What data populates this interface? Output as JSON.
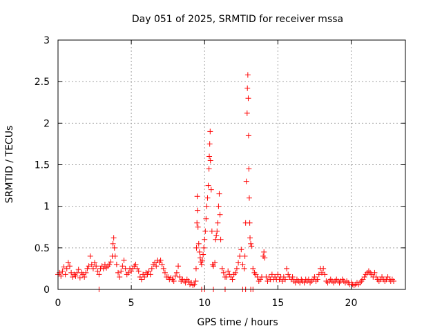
{
  "chart_data": {
    "type": "scatter",
    "title": "Day 051 of 2025, SRMTID for receiver mssa",
    "xlabel": "GPS time / hours",
    "ylabel": "SRMTID / TECUs",
    "xlim": [
      0,
      23.7
    ],
    "ylim": [
      0,
      3
    ],
    "x_ticks": [
      0,
      5,
      10,
      15,
      20
    ],
    "x_tick_labels": [
      "0",
      "5",
      "10",
      "15",
      "20"
    ],
    "y_ticks": [
      0,
      0.5,
      1,
      1.5,
      2,
      2.5,
      3
    ],
    "y_tick_labels": [
      "0",
      "0.5",
      "1",
      "1.5",
      "2",
      "2.5",
      "3"
    ],
    "grid": true,
    "marker": "+",
    "series_color": "#ff0000",
    "series": [
      {
        "name": "SRMTID",
        "points": [
          [
            0.0,
            0.18
          ],
          [
            0.1,
            0.2
          ],
          [
            0.2,
            0.16
          ],
          [
            0.3,
            0.22
          ],
          [
            0.4,
            0.27
          ],
          [
            0.5,
            0.18
          ],
          [
            0.6,
            0.25
          ],
          [
            0.7,
            0.32
          ],
          [
            0.8,
            0.28
          ],
          [
            0.9,
            0.2
          ],
          [
            1.0,
            0.15
          ],
          [
            1.1,
            0.18
          ],
          [
            1.2,
            0.16
          ],
          [
            1.3,
            0.2
          ],
          [
            1.4,
            0.24
          ],
          [
            1.5,
            0.14
          ],
          [
            1.6,
            0.2
          ],
          [
            1.7,
            0.18
          ],
          [
            1.8,
            0.15
          ],
          [
            1.9,
            0.2
          ],
          [
            2.0,
            0.25
          ],
          [
            2.1,
            0.28
          ],
          [
            2.2,
            0.4
          ],
          [
            2.3,
            0.3
          ],
          [
            2.4,
            0.25
          ],
          [
            2.5,
            0.32
          ],
          [
            2.6,
            0.28
          ],
          [
            2.7,
            0.22
          ],
          [
            2.8,
            0.18
          ],
          [
            2.9,
            0.25
          ],
          [
            3.0,
            0.28
          ],
          [
            3.1,
            0.25
          ],
          [
            3.2,
            0.3
          ],
          [
            3.3,
            0.26
          ],
          [
            3.4,
            0.28
          ],
          [
            3.5,
            0.3
          ],
          [
            3.6,
            0.33
          ],
          [
            3.7,
            0.4
          ],
          [
            3.75,
            0.55
          ],
          [
            3.8,
            0.62
          ],
          [
            3.85,
            0.5
          ],
          [
            3.9,
            0.4
          ],
          [
            4.0,
            0.3
          ],
          [
            4.1,
            0.2
          ],
          [
            4.2,
            0.15
          ],
          [
            4.3,
            0.22
          ],
          [
            4.4,
            0.28
          ],
          [
            4.5,
            0.35
          ],
          [
            4.6,
            0.25
          ],
          [
            4.7,
            0.18
          ],
          [
            4.8,
            0.2
          ],
          [
            4.9,
            0.25
          ],
          [
            5.0,
            0.22
          ],
          [
            5.1,
            0.25
          ],
          [
            5.2,
            0.28
          ],
          [
            5.3,
            0.3
          ],
          [
            5.4,
            0.25
          ],
          [
            5.5,
            0.22
          ],
          [
            5.6,
            0.15
          ],
          [
            5.7,
            0.12
          ],
          [
            5.8,
            0.18
          ],
          [
            5.9,
            0.15
          ],
          [
            6.0,
            0.2
          ],
          [
            6.1,
            0.18
          ],
          [
            6.2,
            0.22
          ],
          [
            6.3,
            0.18
          ],
          [
            6.4,
            0.25
          ],
          [
            6.5,
            0.3
          ],
          [
            6.6,
            0.32
          ],
          [
            6.7,
            0.28
          ],
          [
            6.8,
            0.35
          ],
          [
            6.9,
            0.33
          ],
          [
            7.0,
            0.35
          ],
          [
            7.1,
            0.3
          ],
          [
            7.2,
            0.25
          ],
          [
            7.3,
            0.2
          ],
          [
            7.4,
            0.15
          ],
          [
            7.5,
            0.15
          ],
          [
            7.6,
            0.12
          ],
          [
            7.7,
            0.14
          ],
          [
            7.8,
            0.12
          ],
          [
            7.9,
            0.1
          ],
          [
            8.0,
            0.16
          ],
          [
            8.1,
            0.2
          ],
          [
            8.2,
            0.28
          ],
          [
            8.3,
            0.15
          ],
          [
            8.4,
            0.1
          ],
          [
            8.5,
            0.12
          ],
          [
            8.6,
            0.1
          ],
          [
            8.7,
            0.08
          ],
          [
            8.8,
            0.12
          ],
          [
            8.9,
            0.1
          ],
          [
            9.0,
            0.06
          ],
          [
            9.1,
            0.08
          ],
          [
            9.2,
            0.05
          ],
          [
            9.3,
            0.06
          ],
          [
            9.4,
            0.1
          ],
          [
            9.42,
            0.25
          ],
          [
            9.45,
            0.5
          ],
          [
            9.48,
            0.8
          ],
          [
            9.5,
            1.12
          ],
          [
            9.52,
            0.95
          ],
          [
            9.55,
            0.75
          ],
          [
            9.6,
            0.55
          ],
          [
            9.65,
            0.45
          ],
          [
            9.7,
            0.38
          ],
          [
            9.75,
            0.33
          ],
          [
            9.8,
            0.3
          ],
          [
            9.85,
            0.35
          ],
          [
            9.9,
            0.42
          ],
          [
            9.95,
            0.5
          ],
          [
            10.0,
            0.6
          ],
          [
            10.05,
            0.7
          ],
          [
            10.1,
            0.85
          ],
          [
            10.15,
            1.0
          ],
          [
            10.2,
            1.1
          ],
          [
            10.25,
            1.25
          ],
          [
            10.3,
            1.45
          ],
          [
            10.32,
            1.6
          ],
          [
            10.35,
            1.75
          ],
          [
            10.38,
            1.9
          ],
          [
            10.4,
            1.55
          ],
          [
            10.45,
            1.2
          ],
          [
            10.5,
            0.7
          ],
          [
            10.55,
            0.3
          ],
          [
            10.6,
            0.28
          ],
          [
            10.7,
            0.32
          ],
          [
            10.75,
            0.6
          ],
          [
            10.8,
            0.65
          ],
          [
            10.85,
            0.7
          ],
          [
            10.9,
            0.8
          ],
          [
            10.95,
            1.0
          ],
          [
            11.0,
            1.15
          ],
          [
            11.05,
            0.9
          ],
          [
            11.1,
            0.6
          ],
          [
            11.2,
            0.25
          ],
          [
            11.3,
            0.2
          ],
          [
            11.4,
            0.15
          ],
          [
            11.5,
            0.15
          ],
          [
            11.6,
            0.22
          ],
          [
            11.7,
            0.18
          ],
          [
            11.8,
            0.15
          ],
          [
            11.9,
            0.12
          ],
          [
            12.0,
            0.18
          ],
          [
            12.1,
            0.2
          ],
          [
            12.2,
            0.25
          ],
          [
            12.3,
            0.32
          ],
          [
            12.4,
            0.4
          ],
          [
            12.5,
            0.48
          ],
          [
            12.6,
            0.3
          ],
          [
            12.7,
            0.25
          ],
          [
            12.75,
            0.4
          ],
          [
            12.8,
            0.8
          ],
          [
            12.85,
            1.3
          ],
          [
            12.9,
            2.12
          ],
          [
            12.92,
            2.42
          ],
          [
            12.95,
            2.58
          ],
          [
            12.98,
            2.3
          ],
          [
            13.0,
            1.85
          ],
          [
            13.02,
            1.45
          ],
          [
            13.05,
            1.1
          ],
          [
            13.08,
            0.8
          ],
          [
            13.1,
            0.62
          ],
          [
            13.15,
            0.55
          ],
          [
            13.2,
            0.52
          ],
          [
            13.3,
            0.25
          ],
          [
            13.4,
            0.2
          ],
          [
            13.5,
            0.18
          ],
          [
            13.6,
            0.15
          ],
          [
            13.7,
            0.1
          ],
          [
            13.8,
            0.12
          ],
          [
            13.9,
            0.15
          ],
          [
            14.0,
            0.4
          ],
          [
            14.05,
            0.45
          ],
          [
            14.1,
            0.38
          ],
          [
            14.2,
            0.15
          ],
          [
            14.3,
            0.1
          ],
          [
            14.4,
            0.15
          ],
          [
            14.5,
            0.12
          ],
          [
            14.6,
            0.18
          ],
          [
            14.7,
            0.12
          ],
          [
            14.8,
            0.15
          ],
          [
            14.9,
            0.12
          ],
          [
            15.0,
            0.18
          ],
          [
            15.1,
            0.12
          ],
          [
            15.2,
            0.15
          ],
          [
            15.3,
            0.1
          ],
          [
            15.4,
            0.15
          ],
          [
            15.5,
            0.12
          ],
          [
            15.6,
            0.25
          ],
          [
            15.7,
            0.18
          ],
          [
            15.8,
            0.15
          ],
          [
            15.9,
            0.12
          ],
          [
            16.0,
            0.15
          ],
          [
            16.1,
            0.1
          ],
          [
            16.2,
            0.08
          ],
          [
            16.3,
            0.12
          ],
          [
            16.4,
            0.1
          ],
          [
            16.5,
            0.08
          ],
          [
            16.6,
            0.12
          ],
          [
            16.7,
            0.1
          ],
          [
            16.8,
            0.08
          ],
          [
            16.9,
            0.12
          ],
          [
            17.0,
            0.1
          ],
          [
            17.1,
            0.12
          ],
          [
            17.2,
            0.08
          ],
          [
            17.3,
            0.1
          ],
          [
            17.4,
            0.12
          ],
          [
            17.5,
            0.15
          ],
          [
            17.6,
            0.1
          ],
          [
            17.7,
            0.12
          ],
          [
            17.8,
            0.18
          ],
          [
            17.9,
            0.25
          ],
          [
            18.0,
            0.2
          ],
          [
            18.1,
            0.25
          ],
          [
            18.2,
            0.18
          ],
          [
            18.3,
            0.1
          ],
          [
            18.4,
            0.08
          ],
          [
            18.5,
            0.1
          ],
          [
            18.6,
            0.12
          ],
          [
            18.7,
            0.1
          ],
          [
            18.8,
            0.08
          ],
          [
            18.9,
            0.1
          ],
          [
            19.0,
            0.12
          ],
          [
            19.1,
            0.1
          ],
          [
            19.2,
            0.08
          ],
          [
            19.3,
            0.1
          ],
          [
            19.4,
            0.12
          ],
          [
            19.5,
            0.1
          ],
          [
            19.6,
            0.08
          ],
          [
            19.7,
            0.1
          ],
          [
            19.8,
            0.08
          ],
          [
            19.9,
            0.06
          ],
          [
            20.0,
            0.08
          ],
          [
            20.1,
            0.06
          ],
          [
            20.2,
            0.05
          ],
          [
            20.3,
            0.06
          ],
          [
            20.4,
            0.08
          ],
          [
            20.5,
            0.06
          ],
          [
            20.6,
            0.08
          ],
          [
            20.7,
            0.1
          ],
          [
            20.8,
            0.12
          ],
          [
            20.9,
            0.15
          ],
          [
            21.0,
            0.18
          ],
          [
            21.1,
            0.2
          ],
          [
            21.2,
            0.22
          ],
          [
            21.3,
            0.2
          ],
          [
            21.4,
            0.18
          ],
          [
            21.5,
            0.15
          ],
          [
            21.6,
            0.2
          ],
          [
            21.7,
            0.15
          ],
          [
            21.8,
            0.12
          ],
          [
            21.9,
            0.1
          ],
          [
            22.0,
            0.12
          ],
          [
            22.1,
            0.15
          ],
          [
            22.2,
            0.12
          ],
          [
            22.3,
            0.1
          ],
          [
            22.4,
            0.12
          ],
          [
            22.5,
            0.15
          ],
          [
            22.6,
            0.12
          ],
          [
            22.7,
            0.1
          ],
          [
            22.8,
            0.12
          ],
          [
            22.9,
            0.1
          ],
          [
            2.8,
            0.0
          ],
          [
            9.8,
            0.0
          ],
          [
            10.0,
            0.0
          ],
          [
            10.6,
            0.0
          ],
          [
            11.4,
            0.0
          ],
          [
            12.8,
            0.0
          ],
          [
            12.6,
            0.0
          ],
          [
            13.15,
            0.0
          ],
          [
            13.3,
            0.0
          ]
        ]
      }
    ]
  }
}
